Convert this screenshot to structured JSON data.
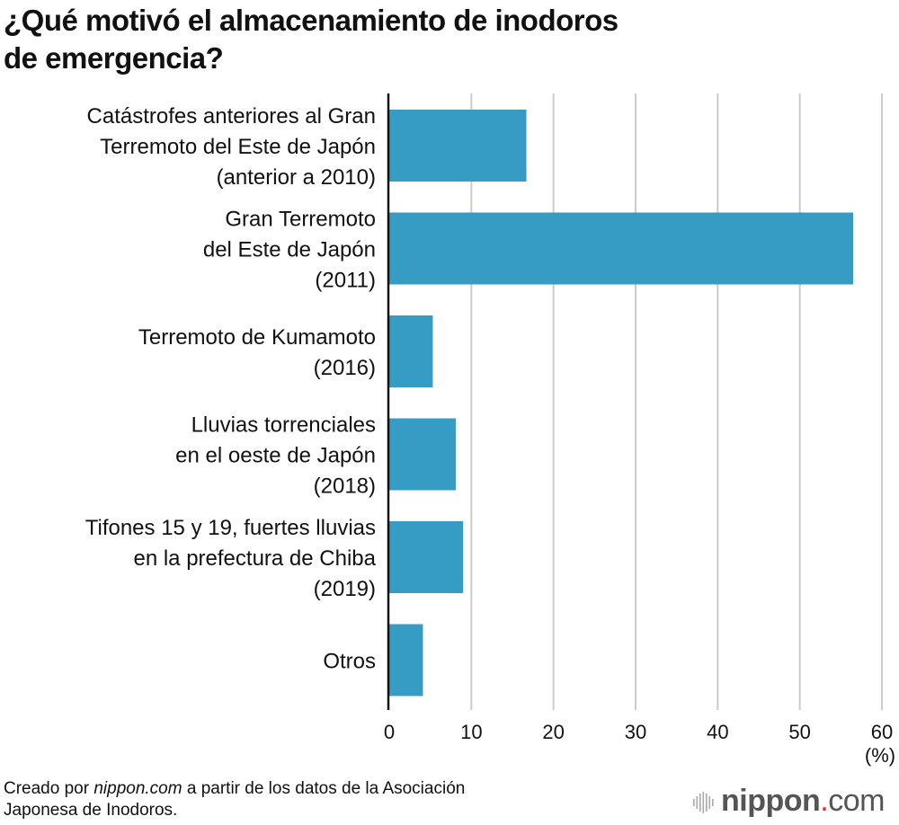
{
  "chart_data": {
    "type": "bar",
    "orientation": "horizontal",
    "title": "¿Qué motivó el almacenamiento de inodoros de emergencia?",
    "title_lines": [
      "¿Qué motivó el almacenamiento de inodoros",
      "de emergencia?"
    ],
    "categories": [
      [
        "Catástrofes anteriores al Gran",
        "Terremoto del Este de Japón",
        "(anterior a 2010)"
      ],
      [
        "Gran Terremoto",
        "del Este de Japón",
        "(2011)"
      ],
      [
        "Terremoto de Kumamoto",
        "(2016)"
      ],
      [
        "Lluvias torrenciales",
        "en el oeste de Japón",
        "(2018)"
      ],
      [
        "Tifones 15 y 19, fuertes lluvias",
        "en la prefectura de Chiba",
        "(2019)"
      ],
      [
        "Otros"
      ]
    ],
    "values": [
      16.7,
      56.5,
      5.3,
      8.1,
      9.0,
      4.1
    ],
    "xlim": [
      0,
      60
    ],
    "xticks": [
      0,
      10,
      20,
      30,
      40,
      50,
      60
    ],
    "xlabel": "(%)",
    "ylabel": "",
    "grid": true,
    "bar_color": "#369cc3",
    "grid_color": "#cccccc",
    "axis_color": "#111111"
  },
  "footer": {
    "source_prefix": "Creado por ",
    "source_site": "nippon.com",
    "source_suffix": " a partir de los datos de la Asociación",
    "source_line2": "Japonesa de Inodoros.",
    "logo_main": "nippon",
    "logo_dot": ".",
    "logo_tld": "com"
  }
}
